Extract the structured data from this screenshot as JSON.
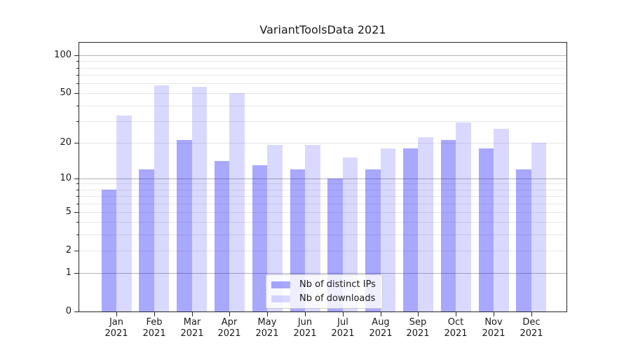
{
  "title": "VariantToolsData 2021",
  "chart_data": {
    "type": "bar",
    "title": "VariantToolsData 2021",
    "categories": [
      "Jan 2021",
      "Feb 2021",
      "Mar 2021",
      "Apr 2021",
      "May 2021",
      "Jun 2021",
      "Jul 2021",
      "Aug 2021",
      "Sep 2021",
      "Oct 2021",
      "Nov 2021",
      "Dec 2021"
    ],
    "series": [
      {
        "name": "Nb of distinct IPs",
        "color": "rgba(0,0,255,0.34)",
        "values": [
          8,
          12,
          21,
          14,
          13,
          12,
          10,
          12,
          18,
          21,
          18,
          12
        ]
      },
      {
        "name": "Nb of downloads",
        "color": "rgba(0,0,255,0.15)",
        "values": [
          33,
          58,
          56,
          50,
          19,
          19,
          15,
          18,
          22,
          29,
          26,
          20
        ]
      }
    ],
    "xlabel": "",
    "ylabel": "",
    "yscale": "log1p",
    "ylim": [
      0,
      128
    ],
    "y_labeled_ticks": [
      0,
      1,
      2,
      5,
      10,
      20,
      50,
      100
    ],
    "y_major_gridlines": [
      1,
      10,
      100
    ],
    "y_minor_gridlines": [
      2,
      3,
      4,
      5,
      6,
      7,
      8,
      9,
      20,
      30,
      40,
      50,
      60,
      70,
      80,
      90
    ],
    "y_minor_tickmarks": [
      3,
      4,
      6,
      7,
      8,
      9,
      30,
      40,
      60,
      70,
      80,
      90
    ],
    "grid": true,
    "legend_position": "lower center"
  },
  "colors": {
    "bar_distinct_ips": "rgba(0,0,255,0.34)",
    "bar_downloads": "rgba(0,0,255,0.15)",
    "grid_major": "#b3b3b3",
    "grid_minor": "#e7e7e7",
    "axis": "#262626",
    "text": "#1a1a1a",
    "legend_background": "rgba(255,255,255,0.8)",
    "legend_border": "#cccccc"
  }
}
